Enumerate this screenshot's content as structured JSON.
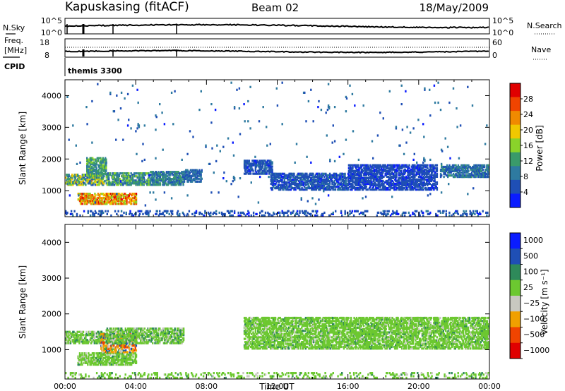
{
  "header": {
    "station": "Kapuskasing (fitACF)",
    "beam": "Beam 02",
    "date": "18/May/2009"
  },
  "noise_panel": {
    "left_label": "N.Sky",
    "left_ticks": [
      "10^5",
      "10^0"
    ],
    "right_ticks": [
      "10^5",
      "10^0"
    ],
    "right_label": "N.Search"
  },
  "freq_panel": {
    "left_label_1": "Freq.",
    "left_label_2": "[MHz]",
    "left_ticks": [
      "18",
      "8"
    ],
    "right_ticks": [
      "60",
      "0"
    ],
    "right_label": "Nave"
  },
  "cpid": {
    "label": "CPID",
    "value": "themis 3300"
  },
  "colors": {
    "power_scale": [
      "#0a1cff",
      "#1f4fb5",
      "#2e7aa0",
      "#3a9a6a",
      "#8ad32a",
      "#f0c800",
      "#f08a00",
      "#f04400",
      "#e00000"
    ],
    "velocity_scale": [
      "#e00000",
      "#f04400",
      "#f0a000",
      "#c8c8c0",
      "#6cc830",
      "#2e8a5a",
      "#1f4fb5",
      "#0a1cff"
    ]
  },
  "chart_data": [
    {
      "type": "heatmap",
      "title": "",
      "ylabel": "Slant Range [km]",
      "xlabel": "",
      "yticks": [
        "1000",
        "2000",
        "3000",
        "4000"
      ],
      "ylim": [
        180,
        4500
      ],
      "xlim": [
        0,
        24
      ],
      "colorbar_label": "Power [dB]",
      "colorbar_ticks": [
        "4",
        "8",
        "12",
        "16",
        "20",
        "24",
        "28"
      ],
      "colorbar_range": [
        0,
        32
      ],
      "bands": [
        {
          "t": [
            0.0,
            2.2
          ],
          "r": [
            1150,
            1500
          ],
          "v": [
            5,
            22
          ]
        },
        {
          "t": [
            0.7,
            4.0
          ],
          "r": [
            550,
            900
          ],
          "v": [
            14,
            30
          ]
        },
        {
          "t": [
            1.2,
            2.3
          ],
          "r": [
            1450,
            2000
          ],
          "v": [
            8,
            16
          ]
        },
        {
          "t": [
            2.3,
            4.8
          ],
          "r": [
            1150,
            1550
          ],
          "v": [
            6,
            16
          ]
        },
        {
          "t": [
            4.8,
            6.7
          ],
          "r": [
            1150,
            1600
          ],
          "v": [
            5,
            14
          ]
        },
        {
          "t": [
            6.7,
            7.7
          ],
          "r": [
            1250,
            1650
          ],
          "v": [
            4,
            10
          ]
        },
        {
          "t": [
            10.1,
            11.7
          ],
          "r": [
            1500,
            1950
          ],
          "v": [
            3,
            8
          ]
        },
        {
          "t": [
            11.6,
            16.0
          ],
          "r": [
            1000,
            1500
          ],
          "v": [
            3,
            8
          ]
        },
        {
          "t": [
            16.0,
            21.0
          ],
          "r": [
            1000,
            1800
          ],
          "v": [
            3,
            6
          ]
        },
        {
          "t": [
            21.2,
            24.0
          ],
          "r": [
            1400,
            1800
          ],
          "v": [
            4,
            12
          ]
        },
        {
          "t": [
            0.0,
            24.0
          ],
          "r": [
            180,
            350
          ],
          "v": [
            3,
            8
          ]
        },
        {
          "t": [
            0.0,
            24.0
          ],
          "r": [
            500,
            4400
          ],
          "v": [
            3,
            10
          ]
        }
      ]
    },
    {
      "type": "heatmap",
      "title": "",
      "ylabel": "Slant Range [km]",
      "xlabel": "Time UT",
      "yticks": [
        "1000",
        "2000",
        "3000",
        "4000"
      ],
      "xticks": [
        "00:00",
        "04:00",
        "08:00",
        "12:00",
        "16:00",
        "20:00",
        "00:00"
      ],
      "ylim": [
        180,
        4500
      ],
      "xlim": [
        0,
        24
      ],
      "colorbar_label": "Velocity [m s⁻¹]",
      "colorbar_ticks": [
        "1000",
        "500",
        "100",
        "25",
        "−25",
        "−100",
        "−500",
        "−1000"
      ],
      "bands": [
        {
          "t": [
            0.0,
            2.2
          ],
          "r": [
            1150,
            1500
          ],
          "v": [
            -40,
            40
          ]
        },
        {
          "t": [
            0.7,
            4.0
          ],
          "r": [
            550,
            900
          ],
          "v": [
            -30,
            30
          ]
        },
        {
          "t": [
            2.0,
            4.0
          ],
          "r": [
            900,
            1400
          ],
          "v": [
            -600,
            200
          ]
        },
        {
          "t": [
            2.3,
            6.7
          ],
          "r": [
            1150,
            1600
          ],
          "v": [
            -40,
            40
          ]
        },
        {
          "t": [
            10.1,
            24.0
          ],
          "r": [
            1000,
            1900
          ],
          "v": [
            -30,
            30
          ]
        },
        {
          "t": [
            0.0,
            24.0
          ],
          "r": [
            180,
            350
          ],
          "v": [
            -30,
            30
          ]
        }
      ]
    }
  ]
}
